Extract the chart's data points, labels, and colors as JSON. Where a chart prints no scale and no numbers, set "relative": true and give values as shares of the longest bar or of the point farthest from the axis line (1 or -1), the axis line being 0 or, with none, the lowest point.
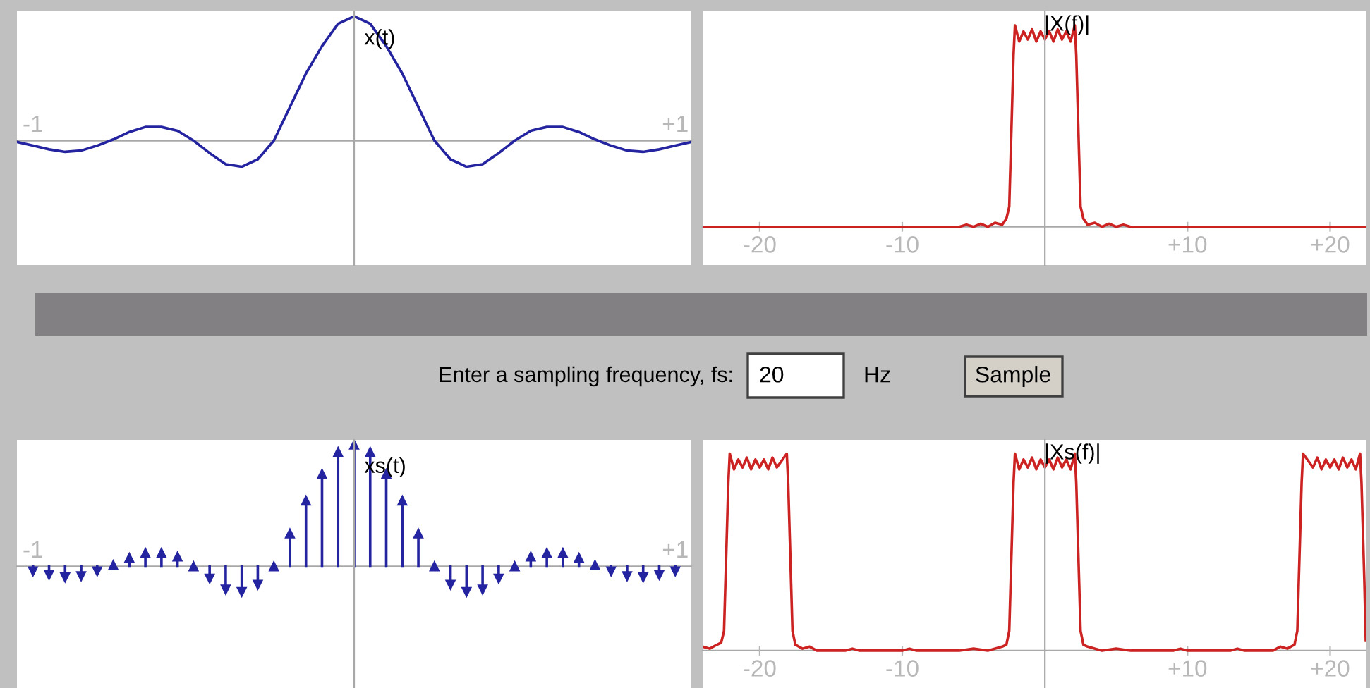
{
  "chart_data": [
    {
      "type": "line",
      "title": "x(t)",
      "relative": true,
      "tick_labels": "x",
      "x": [
        -1.05,
        -1.0,
        -0.95,
        -0.9,
        -0.85,
        -0.8,
        -0.75,
        -0.7,
        -0.65,
        -0.6,
        -0.55,
        -0.5,
        -0.45,
        -0.4,
        -0.35,
        -0.3,
        -0.25,
        -0.2,
        -0.15,
        -0.1,
        -0.05,
        0,
        0.05,
        0.1,
        0.15,
        0.2,
        0.25,
        0.3,
        0.35,
        0.4,
        0.45,
        0.5,
        0.55,
        0.6,
        0.65,
        0.7,
        0.75,
        0.8,
        0.85,
        0.9,
        0.95,
        1.0,
        1.05
      ],
      "series": [
        {
          "color": "#2424a0",
          "values": [
            -0.01,
            -0.04,
            -0.07,
            -0.09,
            -0.08,
            -0.04,
            0.01,
            0.07,
            0.11,
            0.11,
            0.08,
            0.0,
            -0.1,
            -0.19,
            -0.21,
            -0.15,
            0.0,
            0.27,
            0.54,
            0.76,
            0.94,
            1,
            0.94,
            0.76,
            0.54,
            0.27,
            0.0,
            -0.15,
            -0.21,
            -0.19,
            -0.1,
            0.0,
            0.08,
            0.11,
            0.11,
            0.07,
            0.01,
            -0.04,
            -0.08,
            -0.09,
            -0.07,
            -0.04,
            -0.01
          ]
        }
      ],
      "xlim": [
        -1.05,
        1.05
      ],
      "xticks": [
        {
          "value": -1,
          "label": "-1"
        },
        {
          "value": 1,
          "label": "+1"
        }
      ]
    },
    {
      "type": "line",
      "title": "|X(f)|",
      "relative": true,
      "tick_labels": "x",
      "x": [
        -24,
        -6,
        -5.5,
        -5,
        -4.5,
        -4,
        -3.5,
        -3,
        -2.7,
        -2.5,
        -2.4,
        -2.3,
        -2.2,
        -2.1,
        -1.8,
        -1.5,
        -1.2,
        -0.9,
        -0.6,
        -0.3,
        0,
        0.3,
        0.6,
        0.9,
        1.2,
        1.5,
        1.8,
        2.1,
        2.2,
        2.3,
        2.4,
        2.5,
        2.7,
        3,
        3.5,
        4,
        4.5,
        5,
        5.5,
        6,
        22.5
      ],
      "series": [
        {
          "color": "#cc2222",
          "values": [
            0,
            0,
            0.01,
            0,
            0.015,
            0,
            0.02,
            0.01,
            0.04,
            0.1,
            0.35,
            0.6,
            0.85,
            1.0,
            0.92,
            0.97,
            0.93,
            0.98,
            0.92,
            0.97,
            0.93,
            0.97,
            0.92,
            0.98,
            0.93,
            0.97,
            0.92,
            1.0,
            0.85,
            0.6,
            0.35,
            0.1,
            0.04,
            0.01,
            0.02,
            0,
            0.015,
            0,
            0.01,
            0,
            0
          ]
        }
      ],
      "xlim": [
        -24,
        22.5
      ],
      "xticks": [
        {
          "value": -20,
          "label": "-20"
        },
        {
          "value": -10,
          "label": "-10"
        },
        {
          "value": 10,
          "label": "+10"
        },
        {
          "value": 20,
          "label": "+20"
        }
      ]
    },
    {
      "type": "lollipop",
      "title": "xs(t)",
      "relative": true,
      "tick_labels": "x",
      "marker": "triangle",
      "x": [
        -1.0,
        -0.95,
        -0.9,
        -0.85,
        -0.8,
        -0.75,
        -0.7,
        -0.65,
        -0.6,
        -0.55,
        -0.5,
        -0.45,
        -0.4,
        -0.35,
        -0.3,
        -0.25,
        -0.2,
        -0.15,
        -0.1,
        -0.05,
        0,
        0.05,
        0.1,
        0.15,
        0.2,
        0.25,
        0.3,
        0.35,
        0.4,
        0.45,
        0.5,
        0.55,
        0.6,
        0.65,
        0.7,
        0.75,
        0.8,
        0.85,
        0.9,
        0.95,
        1.0
      ],
      "series": [
        {
          "color": "#2424a0",
          "values": [
            -0.04,
            -0.07,
            -0.09,
            -0.08,
            -0.04,
            0.01,
            0.07,
            0.11,
            0.11,
            0.08,
            0.0,
            -0.1,
            -0.19,
            -0.21,
            -0.15,
            0.0,
            0.27,
            0.54,
            0.76,
            0.94,
            1,
            0.94,
            0.76,
            0.54,
            0.27,
            0.0,
            -0.15,
            -0.21,
            -0.19,
            -0.1,
            0.0,
            0.08,
            0.11,
            0.11,
            0.07,
            0.01,
            -0.04,
            -0.08,
            -0.09,
            -0.07,
            -0.04
          ]
        }
      ],
      "xlim": [
        -1.05,
        1.05
      ],
      "xticks": [
        {
          "value": -1,
          "label": "-1"
        },
        {
          "value": 1,
          "label": "+1"
        }
      ]
    },
    {
      "type": "line",
      "title": "|Xs(f)|",
      "relative": true,
      "tick_labels": "x",
      "x": [
        -24,
        -23.5,
        -23,
        -22.7,
        -22.5,
        -22.4,
        -22.3,
        -22.2,
        -22.1,
        -21.8,
        -21.5,
        -21.2,
        -20.9,
        -20.6,
        -20.3,
        -20,
        -19.7,
        -19.4,
        -19.1,
        -18.8,
        -18.4,
        -18.1,
        -18.0,
        -17.9,
        -17.8,
        -17.7,
        -17.5,
        -17,
        -16.5,
        -16,
        -14,
        -13.5,
        -13,
        -10,
        -9.5,
        -9,
        -6,
        -5,
        -4,
        -3,
        -2.7,
        -2.5,
        -2.4,
        -2.3,
        -2.2,
        -2.1,
        -1.8,
        -1.5,
        -1.2,
        -0.9,
        -0.6,
        -0.3,
        0,
        0.3,
        0.6,
        0.9,
        1.2,
        1.5,
        1.8,
        2.1,
        2.2,
        2.3,
        2.4,
        2.5,
        2.7,
        3,
        4,
        5,
        6,
        9,
        9.5,
        10,
        13,
        13.5,
        14,
        16,
        16.5,
        17,
        17.5,
        17.7,
        17.8,
        17.9,
        18.0,
        18.1,
        18.4,
        18.8,
        19.1,
        19.4,
        19.7,
        20,
        20.3,
        20.6,
        20.9,
        21.2,
        21.5,
        21.8,
        22.1,
        22.2,
        22.3,
        22.4,
        22.5
      ],
      "series": [
        {
          "color": "#cc2222",
          "values": [
            0.02,
            0.01,
            0.03,
            0.04,
            0.1,
            0.35,
            0.6,
            0.85,
            1.0,
            0.92,
            0.97,
            0.93,
            0.98,
            0.92,
            0.97,
            0.93,
            0.97,
            0.92,
            0.98,
            0.93,
            0.97,
            1.0,
            0.85,
            0.6,
            0.35,
            0.1,
            0.03,
            0.01,
            0.02,
            0,
            0,
            0.01,
            0,
            0,
            0.01,
            0,
            0,
            0.01,
            0,
            0.02,
            0.03,
            0.1,
            0.35,
            0.6,
            0.85,
            1.0,
            0.92,
            0.97,
            0.93,
            0.98,
            0.92,
            0.97,
            0.93,
            0.97,
            0.92,
            0.98,
            0.93,
            0.97,
            0.92,
            1.0,
            0.85,
            0.6,
            0.35,
            0.1,
            0.03,
            0.02,
            0,
            0.01,
            0,
            0,
            0.01,
            0,
            0,
            0.01,
            0,
            0,
            0.02,
            0.01,
            0.03,
            0.1,
            0.35,
            0.6,
            0.85,
            1.0,
            0.97,
            0.93,
            0.98,
            0.92,
            0.97,
            0.93,
            0.97,
            0.92,
            0.98,
            0.93,
            0.97,
            0.92,
            1.0,
            0.85,
            0.6,
            0.35,
            0.05
          ]
        }
      ],
      "xlim": [
        -24,
        22.5
      ],
      "xticks": [
        {
          "value": -20,
          "label": "-20"
        },
        {
          "value": -10,
          "label": "-10"
        },
        {
          "value": 10,
          "label": "+10"
        },
        {
          "value": 20,
          "label": "+20"
        }
      ]
    },
    {
      "type": "other",
      "annotations": [
        "Enter a sampling frequency, fs:",
        "20",
        "Hz",
        "Sample"
      ]
    }
  ]
}
